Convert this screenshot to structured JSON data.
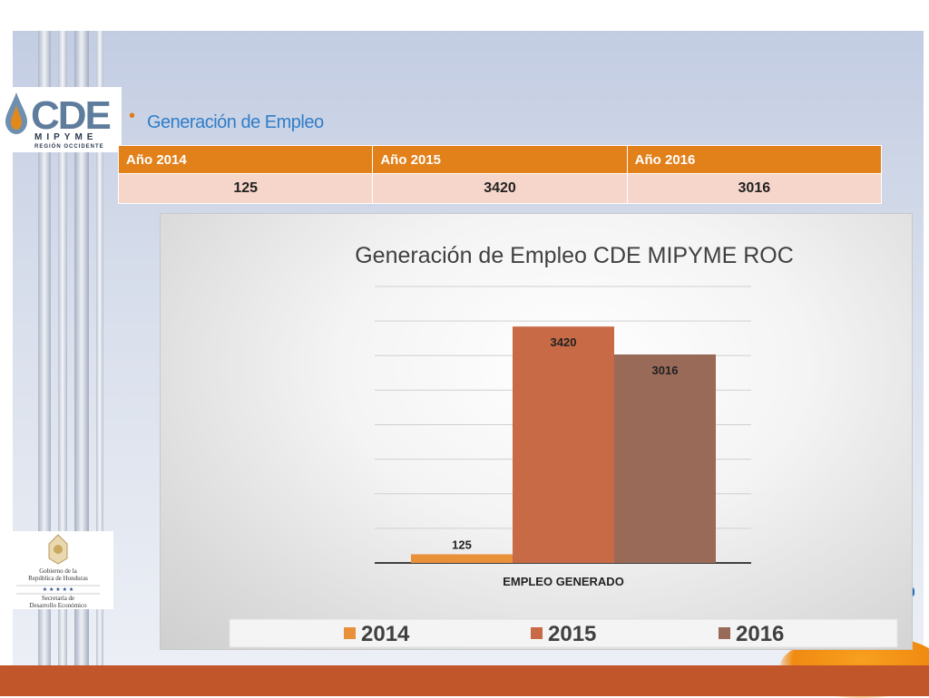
{
  "slide": {
    "title": "Generación de Empleo"
  },
  "logos": {
    "cde_text": "CDE",
    "cde_sub": "MIPYME",
    "cde_region": "REGIÓN OCCIDENTE",
    "gov_line1": "Gobierno de la",
    "gov_line2": "República de Honduras",
    "gov_stars": "★ ★ ★ ★ ★",
    "gov_line3": "Secretaría de",
    "gov_line4": "Desarrollo Económico"
  },
  "table": {
    "headers": [
      "Año 2014",
      "Año 2015",
      "Año 2016"
    ],
    "values": [
      "125",
      "3420",
      "3016"
    ]
  },
  "colors": {
    "orange": "#e2801a",
    "title_blue": "#2f7dc8",
    "bar_2014": "#e8903a",
    "bar_2015": "#c86a45",
    "bar_2016": "#9a6a58",
    "bottom_bar": "#c0562a"
  },
  "chart_data": {
    "type": "bar",
    "title": "Generación de Empleo CDE MIPYME ROC",
    "categories": [
      "EMPLEO GENERADO"
    ],
    "series": [
      {
        "name": "2014",
        "values": [
          125
        ],
        "color": "#e8903a"
      },
      {
        "name": "2015",
        "values": [
          3420
        ],
        "color": "#c86a45"
      },
      {
        "name": "2016",
        "values": [
          3016
        ],
        "color": "#9a6a58"
      }
    ],
    "ylim": [
      0,
      4000
    ],
    "grid": true,
    "data_labels": true,
    "legend": "bottom"
  }
}
